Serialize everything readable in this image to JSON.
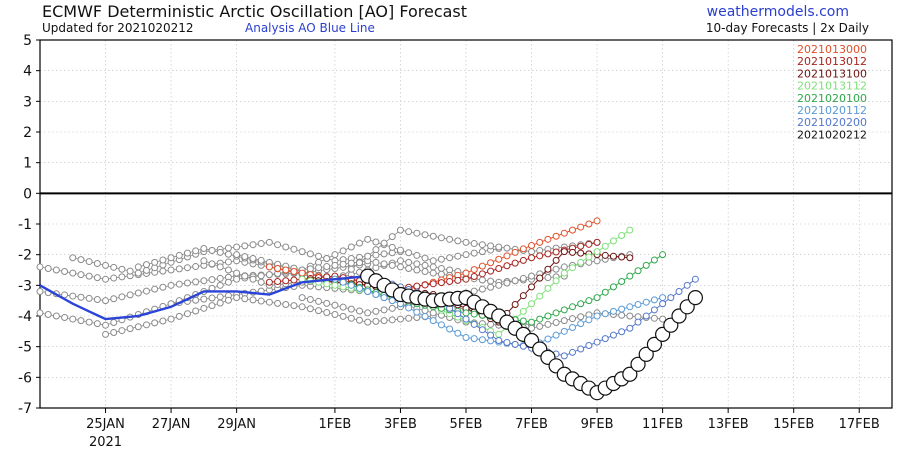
{
  "header": {
    "title": "ECMWF Deterministic Arctic Oscillation [AO] Forecast",
    "updated": "Updated for 2021020212",
    "analysis_note": "Analysis AO Blue Line",
    "site": "weathermodels.com",
    "frequency": "10-day Forecasts | 2x Daily"
  },
  "chart_data": {
    "type": "line",
    "title": "ECMWF Deterministic Arctic Oscillation [AO] Forecast",
    "xlabel": "",
    "ylabel": "",
    "ylim": [
      -7,
      5
    ],
    "xlim": [
      "2021-01-23",
      "2021-02-18"
    ],
    "yticks": [
      5,
      4,
      3,
      2,
      1,
      0,
      -1,
      -2,
      -3,
      -4,
      -5,
      -6,
      -7
    ],
    "xtick_labels": [
      "25JAN",
      "27JAN",
      "29JAN",
      "1FEB",
      "3FEB",
      "5FEB",
      "7FEB",
      "9FEB",
      "11FEB",
      "13FEB",
      "15FEB",
      "17FEB"
    ],
    "xtick_dates": [
      "2021-01-25",
      "2021-01-27",
      "2021-01-29",
      "2021-02-01",
      "2021-02-03",
      "2021-02-05",
      "2021-02-07",
      "2021-02-09",
      "2021-02-11",
      "2021-02-13",
      "2021-02-15",
      "2021-02-17"
    ],
    "year_label": "2021",
    "grid": true,
    "legend_position": "top-right",
    "analysis": {
      "color": "#2b44d8",
      "x": [
        "2021-01-23",
        "2021-01-24",
        "2021-01-25",
        "2021-01-26",
        "2021-01-27",
        "2021-01-28",
        "2021-01-29",
        "2021-01-30",
        "2021-01-31",
        "2021-02-01",
        "2021-02-02"
      ],
      "y": [
        -3.0,
        -3.6,
        -4.1,
        -4.0,
        -3.7,
        -3.2,
        -3.2,
        -3.3,
        -2.9,
        -2.8,
        -2.7
      ]
    },
    "older_runs": {
      "color": "#8a8a8a",
      "series": [
        {
          "x": [
            "2021-01-23",
            "2021-01-25",
            "2021-01-27",
            "2021-01-29",
            "2021-01-31",
            "2021-02-02"
          ],
          "y": [
            -2.4,
            -2.8,
            -2.5,
            -2.2,
            -2.6,
            -2.3
          ]
        },
        {
          "x": [
            "2021-01-23",
            "2021-01-25",
            "2021-01-27",
            "2021-01-29",
            "2021-01-31",
            "2021-02-02"
          ],
          "y": [
            -3.2,
            -3.5,
            -3.0,
            -2.7,
            -2.6,
            -2.9
          ]
        },
        {
          "x": [
            "2021-01-23",
            "2021-01-25",
            "2021-01-27",
            "2021-01-29",
            "2021-01-31",
            "2021-02-02"
          ],
          "y": [
            -3.9,
            -4.3,
            -3.6,
            -3.3,
            -3.0,
            -3.2
          ]
        },
        {
          "x": [
            "2021-01-24",
            "2021-01-26",
            "2021-01-28",
            "2021-01-30",
            "2021-02-01",
            "2021-02-03"
          ],
          "y": [
            -2.1,
            -2.6,
            -1.9,
            -1.6,
            -2.2,
            -1.9
          ]
        },
        {
          "x": [
            "2021-01-25",
            "2021-01-27",
            "2021-01-29",
            "2021-01-31",
            "2021-02-02",
            "2021-02-04"
          ],
          "y": [
            -4.6,
            -4.1,
            -3.4,
            -3.7,
            -4.2,
            -4.0
          ]
        },
        {
          "x": [
            "2021-01-26",
            "2021-01-28",
            "2021-01-30",
            "2021-02-01",
            "2021-02-03",
            "2021-02-05"
          ],
          "y": [
            -2.4,
            -1.8,
            -2.3,
            -2.8,
            -2.2,
            -2.6
          ]
        },
        {
          "x": [
            "2021-01-27",
            "2021-01-29",
            "2021-01-31",
            "2021-02-02",
            "2021-02-04",
            "2021-02-06"
          ],
          "y": [
            -3.6,
            -2.8,
            -2.5,
            -1.5,
            -2.2,
            -1.8
          ]
        },
        {
          "x": [
            "2021-01-28",
            "2021-01-30",
            "2021-02-01",
            "2021-02-03",
            "2021-02-05",
            "2021-02-07"
          ],
          "y": [
            -2.2,
            -3.0,
            -2.8,
            -3.2,
            -3.8,
            -4.3
          ]
        },
        {
          "x": [
            "2021-01-29",
            "2021-01-31",
            "2021-02-02",
            "2021-02-04",
            "2021-02-06",
            "2021-02-08"
          ],
          "y": [
            -2.0,
            -2.5,
            -2.2,
            -2.6,
            -2.9,
            -2.7
          ]
        },
        {
          "x": [
            "2021-01-30",
            "2021-02-01",
            "2021-02-03",
            "2021-02-05",
            "2021-02-07",
            "2021-02-09"
          ],
          "y": [
            -2.4,
            -2.9,
            -1.2,
            -1.6,
            -1.9,
            -1.6
          ]
        },
        {
          "x": [
            "2021-01-31",
            "2021-02-02",
            "2021-02-04",
            "2021-02-06",
            "2021-02-08",
            "2021-02-10"
          ],
          "y": [
            -3.4,
            -3.9,
            -3.5,
            -3.0,
            -2.4,
            -2.0
          ]
        },
        {
          "x": [
            "2021-02-01",
            "2021-02-03",
            "2021-02-05",
            "2021-02-07",
            "2021-02-09",
            "2021-02-11"
          ],
          "y": [
            -2.8,
            -3.6,
            -4.2,
            -4.4,
            -3.9,
            -4.1
          ]
        }
      ]
    },
    "series": [
      {
        "name": "2021013000",
        "color": "#e0502a",
        "x": [
          "2021-01-30",
          "2021-02-01",
          "2021-02-03",
          "2021-02-05",
          "2021-02-07",
          "2021-02-09"
        ],
        "y": [
          -2.4,
          -2.8,
          -3.2,
          -2.6,
          -1.7,
          -0.9
        ]
      },
      {
        "name": "2021013012",
        "color": "#a8231f",
        "x": [
          "2021-01-30",
          "2021-02-01",
          "2021-02-03",
          "2021-02-05",
          "2021-02-07",
          "2021-02-09"
        ],
        "y": [
          -2.9,
          -2.7,
          -3.1,
          -2.8,
          -2.1,
          -1.6
        ]
      },
      {
        "name": "2021013100",
        "color": "#6e1310",
        "x": [
          "2021-01-31",
          "2021-02-02",
          "2021-02-04",
          "2021-02-06",
          "2021-02-08",
          "2021-02-10"
        ],
        "y": [
          -2.8,
          -3.0,
          -3.3,
          -4.2,
          -1.9,
          -2.1
        ]
      },
      {
        "name": "2021013112",
        "color": "#7fe07a",
        "x": [
          "2021-01-31",
          "2021-02-02",
          "2021-02-04",
          "2021-02-06",
          "2021-02-08",
          "2021-02-10"
        ],
        "y": [
          -2.8,
          -3.2,
          -3.7,
          -4.6,
          -2.6,
          -1.2
        ]
      },
      {
        "name": "2021020100",
        "color": "#2ea84a",
        "x": [
          "2021-02-01",
          "2021-02-03",
          "2021-02-05",
          "2021-02-07",
          "2021-02-09",
          "2021-02-11"
        ],
        "y": [
          -2.8,
          -3.5,
          -3.9,
          -4.2,
          -3.4,
          -2.0
        ]
      },
      {
        "name": "2021020112",
        "color": "#5b9ad6",
        "x": [
          "2021-02-01",
          "2021-02-03",
          "2021-02-05",
          "2021-02-07",
          "2021-02-09",
          "2021-02-11"
        ],
        "y": [
          -2.8,
          -3.6,
          -4.7,
          -5.0,
          -4.0,
          -3.4
        ]
      },
      {
        "name": "2021020200",
        "color": "#5577cc",
        "x": [
          "2021-02-02",
          "2021-02-04",
          "2021-02-06",
          "2021-02-08",
          "2021-02-10",
          "2021-02-12"
        ],
        "y": [
          -2.7,
          -3.4,
          -4.8,
          -5.3,
          -4.4,
          -2.8
        ]
      },
      {
        "name": "2021020212",
        "color": "#111111",
        "x": [
          "2021-02-02",
          "2021-02-03",
          "2021-02-04",
          "2021-02-05",
          "2021-02-06",
          "2021-02-07",
          "2021-02-08",
          "2021-02-09",
          "2021-02-10",
          "2021-02-11",
          "2021-02-12"
        ],
        "y": [
          -2.7,
          -3.3,
          -3.5,
          -3.4,
          -4.0,
          -4.8,
          -5.9,
          -6.5,
          -5.9,
          -4.6,
          -3.4
        ]
      }
    ]
  }
}
